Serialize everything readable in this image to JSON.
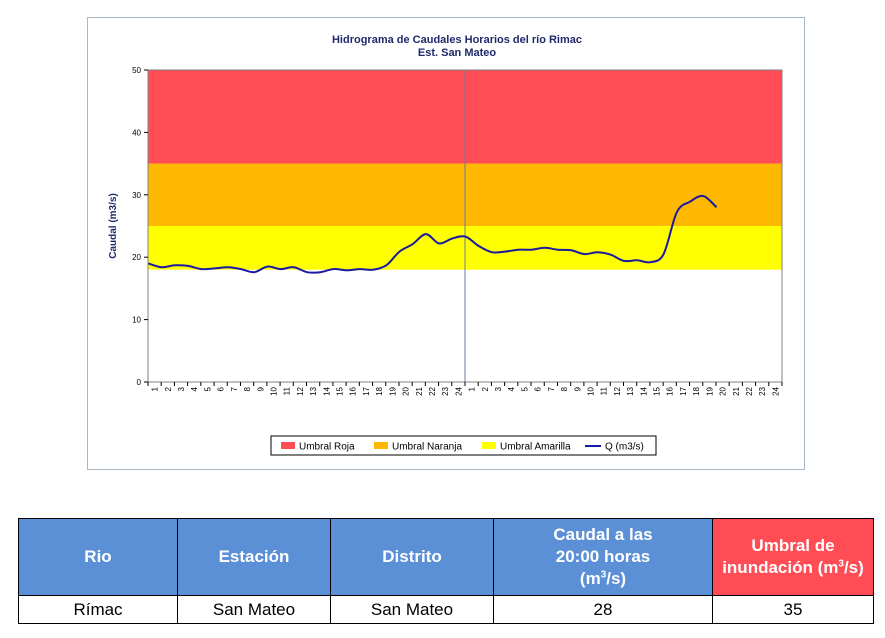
{
  "chart_data": {
    "type": "line",
    "title": "Hidrograma de Caudales Horarios del río Rimac",
    "subtitle": "Est. San Mateo",
    "ylabel": "Caudal  (m3/s)",
    "xlabel": "",
    "ylim": [
      0,
      50
    ],
    "yticks": [
      "0",
      "10",
      "20",
      "30",
      "40",
      "50"
    ],
    "xticks": [
      "1",
      "2",
      "3",
      "4",
      "5",
      "6",
      "7",
      "8",
      "9",
      "10",
      "11",
      "12",
      "13",
      "14",
      "15",
      "16",
      "17",
      "18",
      "19",
      "20",
      "21",
      "22",
      "23",
      "24",
      "1",
      "2",
      "3",
      "4",
      "5",
      "6",
      "7",
      "8",
      "9",
      "10",
      "11",
      "12",
      "13",
      "14",
      "15",
      "16",
      "17",
      "18",
      "19",
      "20",
      "21",
      "22",
      "23",
      "24"
    ],
    "thresholds": [
      {
        "name": "Umbral Roja",
        "from": 35,
        "to": 50,
        "color": "#ff4c55"
      },
      {
        "name": "Umbral Naranja",
        "from": 25,
        "to": 35,
        "color": "#ffb800"
      },
      {
        "name": "Umbral Amarilla",
        "from": 18,
        "to": 25,
        "color": "#ffff00"
      }
    ],
    "series": [
      {
        "name": "Q (m3/s)",
        "color": "#1a1aa0",
        "x": [
          1,
          2,
          3,
          4,
          5,
          6,
          7,
          8,
          9,
          10,
          11,
          12,
          13,
          14,
          15,
          16,
          17,
          18,
          19,
          20,
          21,
          22,
          23,
          24,
          25,
          26,
          27,
          28,
          29,
          30,
          31,
          32,
          33,
          34,
          35,
          36,
          37,
          38,
          39,
          40,
          41,
          42,
          43,
          44
        ],
        "values": [
          19,
          18.4,
          18.7,
          18.6,
          18.1,
          18.2,
          18.4,
          18.1,
          17.6,
          18.5,
          18.1,
          18.4,
          17.6,
          17.6,
          18.1,
          17.9,
          18.1,
          18.0,
          18.7,
          20.9,
          22.1,
          23.7,
          22.2,
          23.0,
          23.3,
          21.8,
          20.8,
          20.9,
          21.2,
          21.2,
          21.5,
          21.2,
          21.1,
          20.5,
          20.8,
          20.4,
          19.4,
          19.5,
          19.2,
          20.5,
          27.2,
          28.9,
          29.8,
          28.0
        ]
      }
    ],
    "day_separator_after": 24,
    "legend_position": "bottom",
    "grid": false
  },
  "table": {
    "headers": [
      "Rio",
      "Estación",
      "Distrito",
      "Caudal a las 20:00 horas",
      "Umbral de inundación"
    ],
    "header_units": [
      "",
      "",
      "",
      "(m3/s)",
      "(m3/s)"
    ],
    "row": [
      "Rímac",
      "San Mateo",
      "San Mateo",
      "28",
      "35"
    ]
  }
}
